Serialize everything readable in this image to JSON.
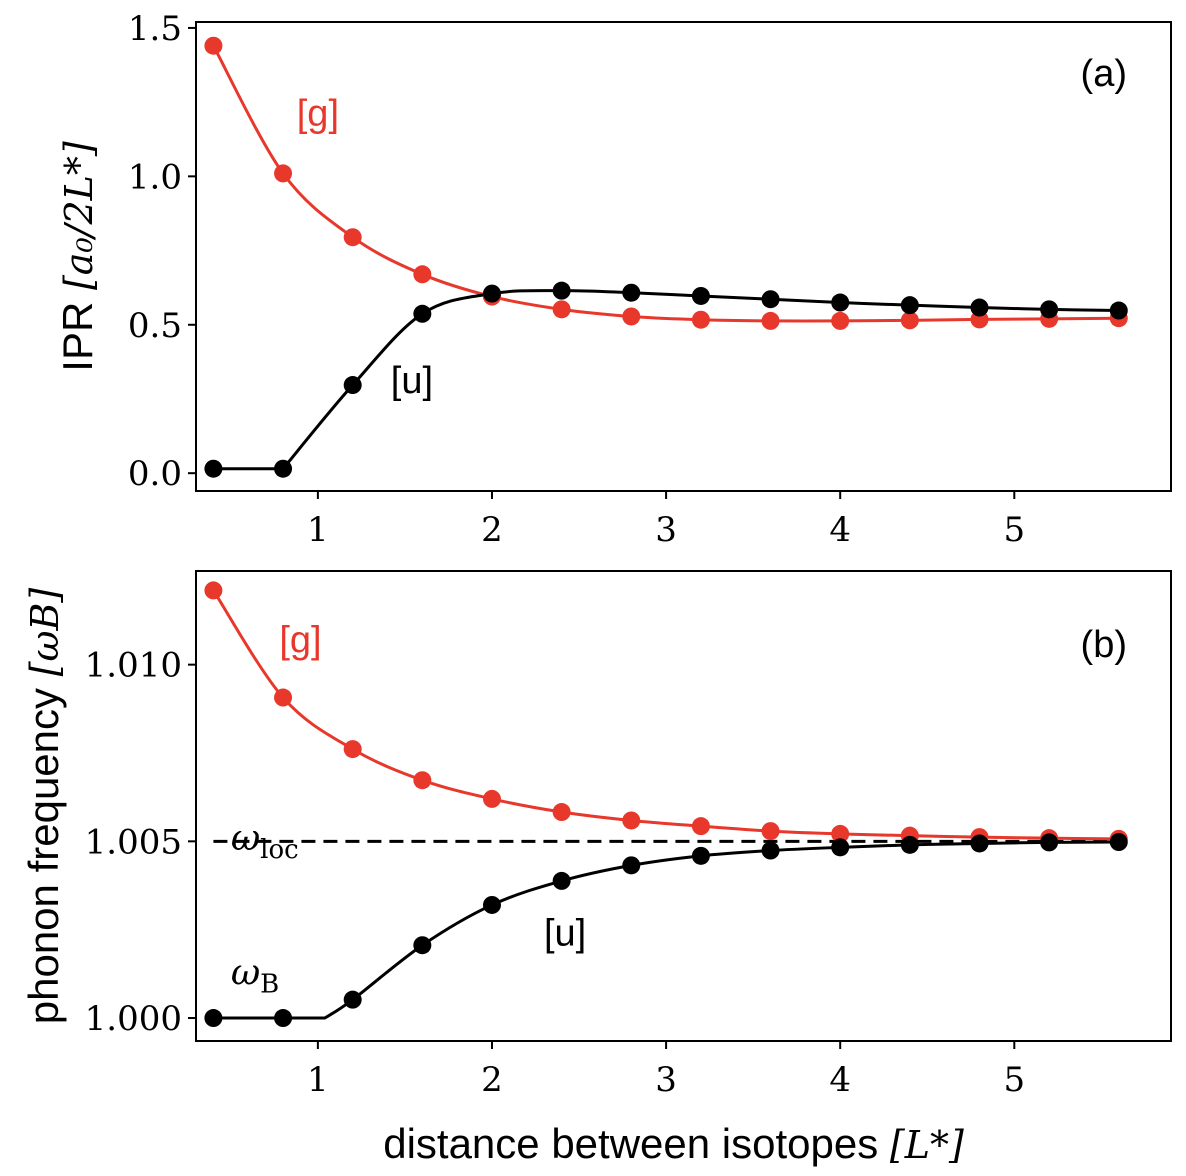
{
  "colors": {
    "g": "#e8382c",
    "u": "#000000",
    "axis": "#000000",
    "background": "#ffffff"
  },
  "chart_data": [
    {
      "id": "a",
      "type": "line",
      "panel_label": "(a)",
      "ylabel": {
        "prefix": "IPR",
        "unit": "[a₀/2L*]"
      },
      "xlabel": "",
      "xlim": [
        0.3,
        5.9
      ],
      "ylim": [
        -0.06,
        1.52
      ],
      "xticks": [
        1,
        2,
        3,
        4,
        5
      ],
      "xtick_labels": [
        "1",
        "2",
        "3",
        "4",
        "5"
      ],
      "yticks": [
        0.0,
        0.5,
        1.0,
        1.5
      ],
      "ytick_labels": [
        "0.0",
        "0.5",
        "1.0",
        "1.5"
      ],
      "x": [
        0.4,
        0.8,
        1.2,
        1.6,
        2.0,
        2.4,
        2.8,
        3.2,
        3.6,
        4.0,
        4.4,
        4.8,
        5.2,
        5.6
      ],
      "series": [
        {
          "name": "[g]",
          "color": "#e8382c",
          "values": [
            1.44,
            1.01,
            0.795,
            0.67,
            0.595,
            0.552,
            0.528,
            0.517,
            0.513,
            0.513,
            0.515,
            0.518,
            0.52,
            0.522
          ]
        },
        {
          "name": "[u]",
          "color": "#000000",
          "values": [
            0.015,
            0.015,
            0.297,
            0.537,
            0.605,
            0.615,
            0.608,
            0.597,
            0.586,
            0.575,
            0.566,
            0.558,
            0.552,
            0.548
          ]
        }
      ],
      "annotations": [
        {
          "text": "[g]",
          "series": "[g]",
          "x": 1.0,
          "y": 1.17
        },
        {
          "text": "[u]",
          "series": "[u]",
          "x": 1.54,
          "y": 0.27
        }
      ]
    },
    {
      "id": "b",
      "type": "line",
      "panel_label": "(b)",
      "ylabel": {
        "prefix": "phonon frequency",
        "unit": "[ωB]"
      },
      "xlabel": {
        "prefix": "distance between isotopes",
        "unit": "[L*]"
      },
      "xlim": [
        0.3,
        5.9
      ],
      "ylim": [
        0.99935,
        1.01265
      ],
      "xticks": [
        1,
        2,
        3,
        4,
        5
      ],
      "xtick_labels": [
        "1",
        "2",
        "3",
        "4",
        "5"
      ],
      "yticks": [
        1.0,
        1.005,
        1.01
      ],
      "ytick_labels": [
        "1.000",
        "1.005",
        "1.010"
      ],
      "x": [
        0.4,
        0.8,
        1.2,
        1.6,
        2.0,
        2.4,
        2.8,
        3.2,
        3.6,
        4.0,
        4.4,
        4.8,
        5.2,
        5.6
      ],
      "series": [
        {
          "name": "[g]",
          "color": "#e8382c",
          "values": [
            1.0121,
            1.00907,
            1.00761,
            1.00673,
            1.0062,
            1.00583,
            1.00559,
            1.00543,
            1.00529,
            1.00521,
            1.00516,
            1.00512,
            1.00509,
            1.00507
          ]
        },
        {
          "name": "[u]",
          "color": "#000000",
          "values": [
            1.0,
            1.0,
            1.00052,
            1.00206,
            1.0032,
            1.00388,
            1.00432,
            1.00459,
            1.00474,
            1.00483,
            1.0049,
            1.00494,
            1.00497,
            1.00498
          ]
        }
      ],
      "reference_line": {
        "label": "ω loc",
        "main": "ω",
        "sub": "loc",
        "y": 1.005,
        "style": "dashed"
      },
      "annotations": [
        {
          "text": "[g]",
          "series": "[g]",
          "x": 0.9,
          "y": 1.01035
        },
        {
          "text": "[u]",
          "series": "[u]",
          "x": 2.42,
          "y": 1.00205
        },
        {
          "text": "ω loc",
          "main": "ω",
          "sub": "loc",
          "x": 0.5,
          "y": 1.00475
        },
        {
          "text": "ω B",
          "main": "ω",
          "sub": "B",
          "x": 0.5,
          "y": 1.00095
        }
      ]
    }
  ]
}
